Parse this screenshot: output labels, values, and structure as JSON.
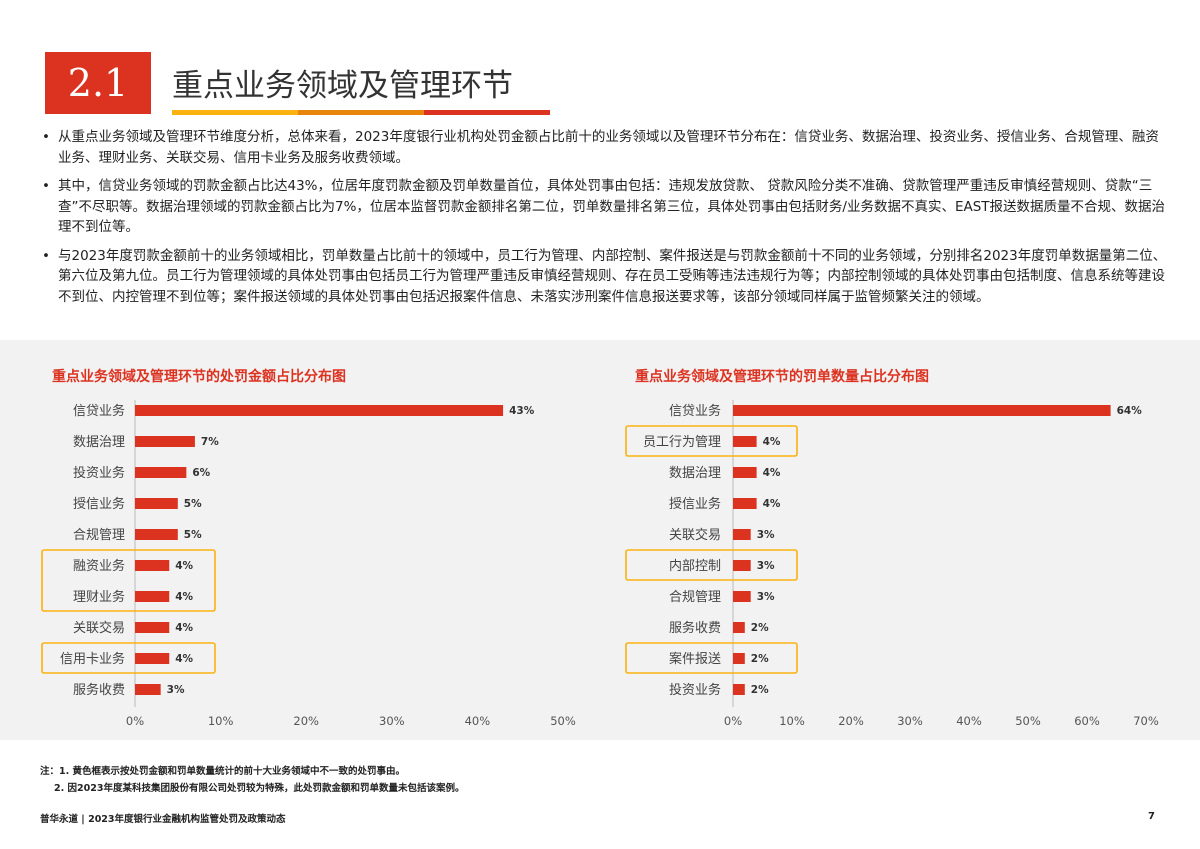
{
  "header": {
    "number": "2.1",
    "title": "重点业务领域及管理环节",
    "colors": [
      "#fbb20f",
      "#e8850d",
      "#dc3220"
    ]
  },
  "bullets": [
    "从重点业务领域及管理环节维度分析，总体来看，2023年度银行业机构处罚金额占比前十的业务领域以及管理环节分布在：信贷业务、数据治理、投资业务、授信业务、合规管理、融资业务、理财业务、关联交易、信用卡业务及服务收费领域。",
    "其中，信贷业务领域的罚款金额占比达43%，位居年度罚款金额及罚单数量首位，具体处罚事由包括：违规发放贷款、 贷款风险分类不准确、贷款管理严重违反审慎经营规则、贷款“三查”不尽职等。数据治理领域的罚款金额占比为7%，位居本监督罚款金额排名第二位，罚单数量排名第三位，具体处罚事由包括财务/业务数据不真实、EAST报送数据质量不合规、数据治理不到位等。",
    "与2023年度罚款金额前十的业务领域相比，罚单数量占比前十的领域中，员工行为管理、内部控制、案件报送是与罚款金额前十不同的业务领域，分别排名2023年度罚单数据量第二位、第六位及第九位。员工行为管理领域的具体处罚事由包括员工行为管理严重违反审慎经营规则、存在员工受贿等违法违规行为等；内部控制领域的具体处罚事由包括制度、信息系统等建设不到位、内控管理不到位等；案件报送领域的具体处罚事由包括迟报案件信息、未落实涉刑案件信息报送要求等，该部分领域同样属于监管频繁关注的领域。"
  ],
  "chart_data": [
    {
      "type": "bar",
      "orientation": "horizontal",
      "title": "重点业务领域及管理环节的处罚金额占比分布图",
      "categories": [
        "信贷业务",
        "数据治理",
        "投资业务",
        "授信业务",
        "合规管理",
        "融资业务",
        "理财业务",
        "关联交易",
        "信用卡业务",
        "服务收费"
      ],
      "values": [
        43,
        7,
        6,
        5,
        5,
        4,
        4,
        4,
        4,
        3
      ],
      "labels": [
        "43%",
        "7%",
        "6%",
        "5%",
        "5%",
        "4%",
        "4%",
        "4%",
        "4%",
        "3%"
      ],
      "xlim": [
        0,
        50
      ],
      "ticks": [
        "0%",
        "10%",
        "20%",
        "30%",
        "40%",
        "50%"
      ],
      "highlighted": [
        "融资业务",
        "理财业务",
        "信用卡业务"
      ],
      "bar_color": "#dc3220",
      "highlight_color": "#fbb20f"
    },
    {
      "type": "bar",
      "orientation": "horizontal",
      "title": "重点业务领域及管理环节的罚单数量占比分布图",
      "categories": [
        "信贷业务",
        "员工行为管理",
        "数据治理",
        "授信业务",
        "关联交易",
        "内部控制",
        "合规管理",
        "服务收费",
        "案件报送",
        "投资业务"
      ],
      "values": [
        64,
        4,
        4,
        4,
        3,
        3,
        3,
        2,
        2,
        2
      ],
      "labels": [
        "64%",
        "4%",
        "4%",
        "4%",
        "3%",
        "3%",
        "3%",
        "2%",
        "2%",
        "2%"
      ],
      "xlim": [
        0,
        70
      ],
      "ticks": [
        "0%",
        "10%",
        "20%",
        "30%",
        "40%",
        "50%",
        "60%",
        "70%"
      ],
      "highlighted": [
        "员工行为管理",
        "内部控制",
        "案件报送"
      ],
      "bar_color": "#dc3220",
      "highlight_color": "#fbb20f"
    }
  ],
  "notes": [
    "注：1. 黄色框表示按处罚金额和罚单数量统计的前十大业务领域中不一致的处罚事由。",
    "2. 因2023年度某科技集团股份有限公司处罚较为特殊，此处罚款金额和罚单数量未包括该案例。"
  ],
  "footer": "普华永道 | 2023年度银行业金融机构监管处罚及政策动态",
  "page_number": "7"
}
